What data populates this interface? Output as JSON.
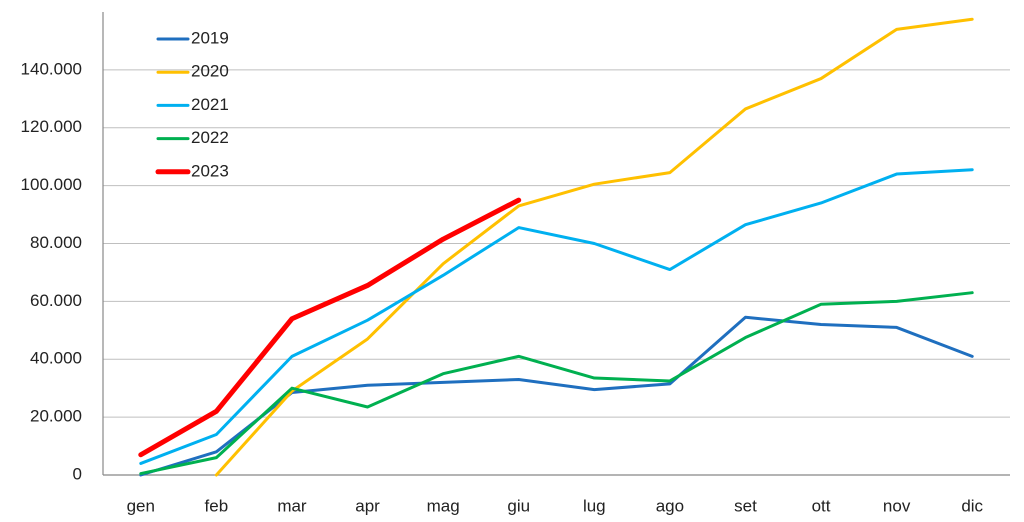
{
  "chart_data": {
    "type": "line",
    "categories": [
      "gen",
      "feb",
      "mar",
      "apr",
      "mag",
      "giu",
      "lug",
      "ago",
      "set",
      "ott",
      "nov",
      "dic"
    ],
    "series": [
      {
        "name": "2019",
        "color": "#1f6fbf",
        "values": [
          0,
          8000,
          28500,
          31000,
          32000,
          33000,
          29500,
          31500,
          54500,
          52000,
          51000,
          41000
        ]
      },
      {
        "name": "2020",
        "color": "#ffc000",
        "values": [
          null,
          0,
          29000,
          47000,
          73000,
          93000,
          100500,
          104500,
          126500,
          137000,
          154000,
          157500
        ]
      },
      {
        "name": "2021",
        "color": "#00b0f0",
        "values": [
          4000,
          14000,
          41000,
          53500,
          69000,
          85500,
          80000,
          71000,
          86500,
          94000,
          104000,
          105500
        ]
      },
      {
        "name": "2022",
        "color": "#00b050",
        "values": [
          500,
          6000,
          30000,
          23500,
          35000,
          41000,
          33500,
          32500,
          47500,
          59000,
          60000,
          63000
        ]
      },
      {
        "name": "2023",
        "color": "#ff0000",
        "values": [
          7000,
          22000,
          54000,
          65500,
          81500,
          95000,
          null,
          null,
          null,
          null,
          null,
          null
        ]
      }
    ],
    "ylim": [
      0,
      160000
    ],
    "yticks": [
      0,
      {
        "value": 20000,
        "label": "20.000"
      },
      {
        "value": 40000,
        "label": "40.000"
      },
      {
        "value": 60000,
        "label": "60.000"
      },
      {
        "value": 80000,
        "label": "80.000"
      },
      {
        "value": 100000,
        "label": "100.000"
      },
      {
        "value": 120000,
        "label": "120.000"
      },
      {
        "value": 140000,
        "label": "140.000"
      }
    ],
    "grid": true,
    "legend": "upper left"
  }
}
